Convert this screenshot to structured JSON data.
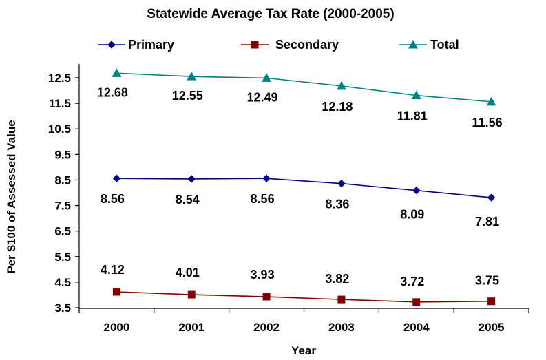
{
  "chart_data": {
    "type": "line",
    "title": "Statewide Average Tax Rate (2000-2005)",
    "xlabel": "Year",
    "ylabel": "Per $100 of Assessed Value",
    "categories": [
      "2000",
      "2001",
      "2002",
      "2003",
      "2004",
      "2005"
    ],
    "ylim": [
      3.5,
      12.5
    ],
    "yticks": [
      "3.5",
      "4.5",
      "5.5",
      "6.5",
      "7.5",
      "8.5",
      "9.5",
      "10.5",
      "11.5",
      "12.5"
    ],
    "grid": false,
    "legend": "top",
    "series": [
      {
        "name": "Primary",
        "color": "#000080",
        "marker": "diamond",
        "values": [
          8.56,
          8.54,
          8.56,
          8.36,
          8.09,
          7.81
        ],
        "labels": [
          "8.56",
          "8.54",
          "8.56",
          "8.36",
          "8.09",
          "7.81"
        ]
      },
      {
        "name": "Secondary",
        "color": "#800000",
        "marker": "square",
        "values": [
          4.12,
          4.01,
          3.93,
          3.82,
          3.72,
          3.75
        ],
        "labels": [
          "4.12",
          "4.01",
          "3.93",
          "3.82",
          "3.72",
          "3.75"
        ]
      },
      {
        "name": "Total",
        "color": "#008080",
        "marker": "triangle",
        "values": [
          12.68,
          12.55,
          12.49,
          12.18,
          11.81,
          11.56
        ],
        "labels": [
          "12.68",
          "12.55",
          "12.49",
          "12.18",
          "11.81",
          "11.56"
        ]
      }
    ]
  }
}
